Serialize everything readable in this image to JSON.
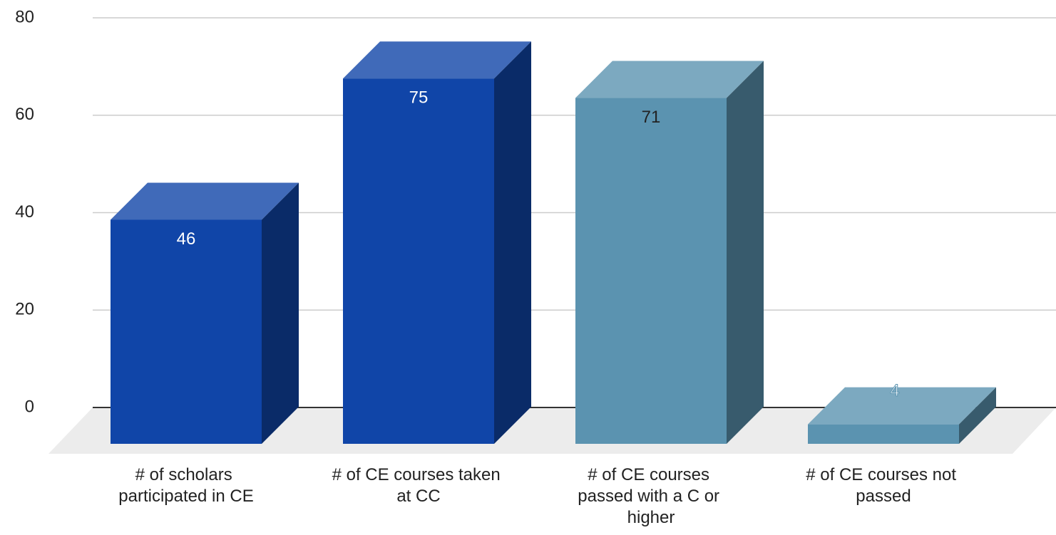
{
  "chart_data": {
    "type": "bar3d",
    "categories": [
      "# of scholars participated in CE",
      "# of CE courses taken at CC",
      "# of CE courses passed with a C or higher",
      "# of CE courses not passed"
    ],
    "values": [
      46,
      75,
      71,
      4
    ],
    "colors": [
      "#1045a8",
      "#1045a8",
      "#5b93b0",
      "#5b93b0"
    ],
    "ylim": [
      0,
      80
    ],
    "yticks": [
      0,
      20,
      40,
      60,
      80
    ],
    "grid": true
  }
}
